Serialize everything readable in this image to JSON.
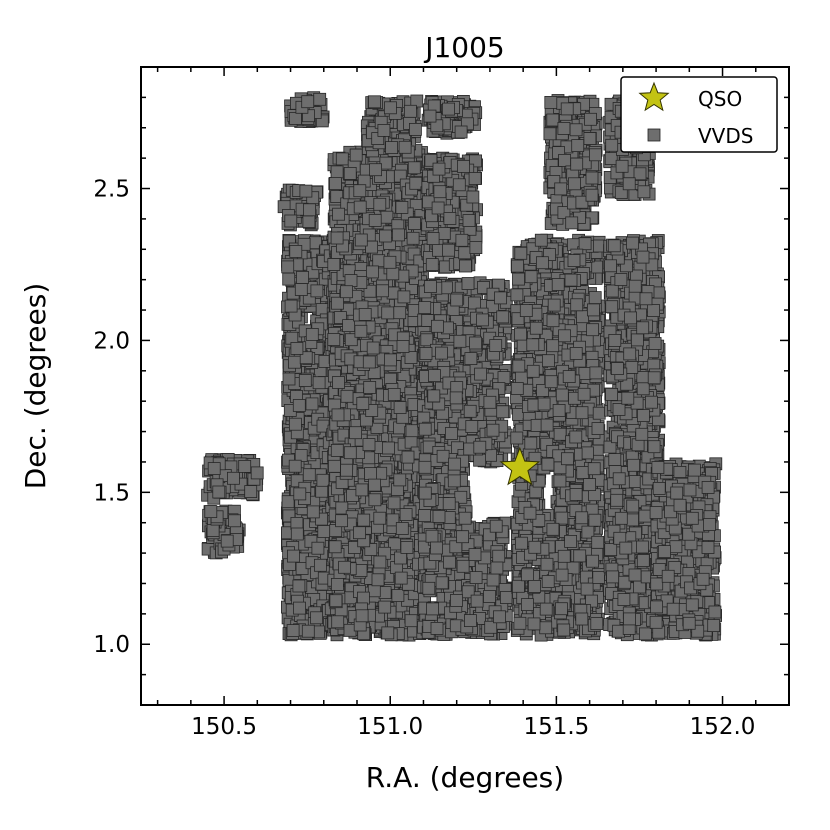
{
  "chart_data": {
    "type": "scatter",
    "title": "J1005",
    "xlabel": "R.A. (degrees)",
    "ylabel": "Dec. (degrees)",
    "xlim": [
      150.25,
      152.2
    ],
    "ylim": [
      0.8,
      2.9
    ],
    "xticks": [
      150.5,
      151.0,
      151.5,
      152.0
    ],
    "xtick_labels": [
      "150.5",
      "151.0",
      "151.5",
      "152.0"
    ],
    "yticks": [
      1.0,
      1.5,
      2.0,
      2.5
    ],
    "ytick_labels": [
      "1.0",
      "1.5",
      "2.0",
      "2.5"
    ],
    "grid": false,
    "legend_position": "top-right",
    "series": [
      {
        "name": "QSO",
        "marker": "star",
        "color": "#c3c313",
        "points": [
          [
            151.39,
            1.58
          ]
        ]
      },
      {
        "name": "VVDS",
        "marker": "square",
        "color": "#6e6e6e",
        "approx_count": 2600,
        "regions": [
          {
            "ra": [
              150.45,
              150.6
            ],
            "dec": [
              1.48,
              1.61
            ]
          },
          {
            "ra": [
              150.45,
              150.55
            ],
            "dec": [
              1.3,
              1.44
            ]
          },
          {
            "ra": [
              150.7,
              150.8
            ],
            "dec": [
              2.72,
              2.8
            ]
          },
          {
            "ra": [
              150.68,
              150.78
            ],
            "dec": [
              2.38,
              2.5
            ]
          },
          {
            "ra": [
              150.69,
              150.84
            ],
            "dec": [
              1.03,
              2.33
            ]
          },
          {
            "ra": [
              150.83,
              151.1
            ],
            "dec": [
              1.03,
              2.62
            ]
          },
          {
            "ra": [
              150.93,
              151.08
            ],
            "dec": [
              2.62,
              2.79
            ]
          },
          {
            "ra": [
              151.1,
              151.35
            ],
            "dec": [
              1.03,
              2.19
            ]
          },
          {
            "ra": [
              151.11,
              151.26
            ],
            "dec": [
              2.24,
              2.6
            ]
          },
          {
            "ra": [
              151.11,
              151.26
            ],
            "dec": [
              2.68,
              2.79
            ]
          },
          {
            "ra": [
              151.38,
              151.63
            ],
            "dec": [
              1.03,
              2.33
            ]
          },
          {
            "ra": [
              151.48,
              151.62
            ],
            "dec": [
              2.38,
              2.79
            ]
          },
          {
            "ra": [
              151.66,
              151.81
            ],
            "dec": [
              1.03,
              2.33
            ]
          },
          {
            "ra": [
              151.66,
              151.78
            ],
            "dec": [
              2.48,
              2.79
            ]
          },
          {
            "ra": [
              151.8,
              151.98
            ],
            "dec": [
              1.03,
              1.6
            ]
          }
        ],
        "empty_zones": [
          {
            "ra": [
              151.23,
              151.38
            ],
            "dec": [
              1.4,
              1.6
            ]
          },
          {
            "ra": [
              151.45,
              151.5
            ],
            "dec": [
              1.43,
              1.58
            ]
          }
        ]
      }
    ]
  }
}
